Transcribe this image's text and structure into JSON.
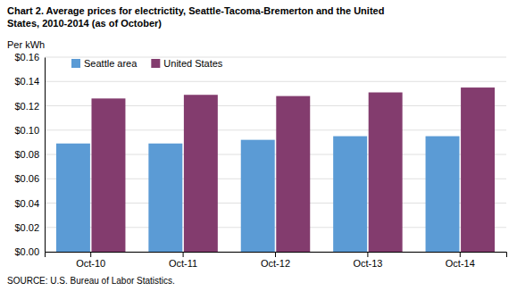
{
  "chart_data": {
    "type": "bar",
    "title": "Chart 2. Average prices for electrictity, Seattle-Tacoma-Bremerton and the United\nStates, 2010-2014  (as of October)",
    "ylabel": "Per kWh",
    "source": "SOURCE: U.S. Bureau of Labor Statistics.",
    "categories": [
      "Oct-10",
      "Oct-11",
      "Oct-12",
      "Oct-13",
      "Oct-14"
    ],
    "series": [
      {
        "name": "Seattle area",
        "color": "#5B9BD5",
        "values": [
          0.089,
          0.089,
          0.092,
          0.095,
          0.095
        ]
      },
      {
        "name": "United States",
        "color": "#833C6E",
        "values": [
          0.126,
          0.129,
          0.128,
          0.131,
          0.135
        ]
      }
    ],
    "ylim": [
      0.0,
      0.16
    ],
    "yticks": [
      {
        "value": 0.0,
        "label": "$0.00"
      },
      {
        "value": 0.02,
        "label": "$0.02"
      },
      {
        "value": 0.04,
        "label": "$0.04"
      },
      {
        "value": 0.06,
        "label": "$0.06"
      },
      {
        "value": 0.08,
        "label": "$0.08"
      },
      {
        "value": 0.1,
        "label": "$0.10"
      },
      {
        "value": 0.12,
        "label": "$0.12"
      },
      {
        "value": 0.14,
        "label": "$0.14"
      },
      {
        "value": 0.16,
        "label": "$0.16"
      }
    ],
    "grid": true,
    "legend": "upper left"
  }
}
